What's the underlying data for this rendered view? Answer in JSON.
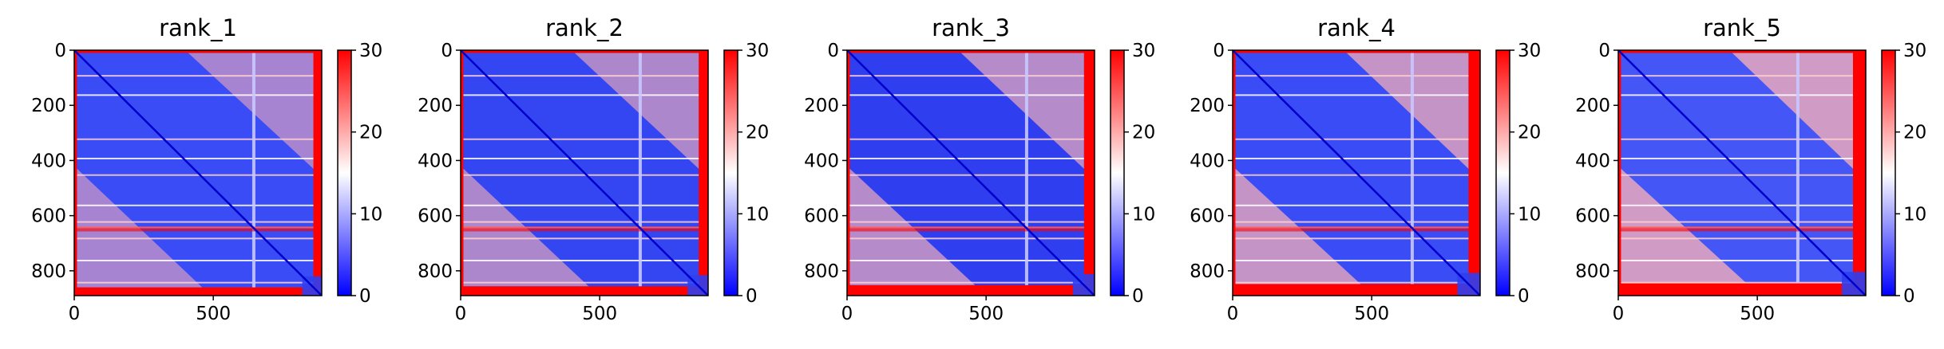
{
  "chart_data": [
    {
      "type": "heatmap",
      "title": "rank_1",
      "xticks": [
        0,
        500
      ],
      "yticks": [
        0,
        200,
        400,
        600,
        800
      ],
      "colorbar": {
        "ticks": [
          0,
          10,
          20,
          30
        ],
        "vmin": 0,
        "vmax": 30,
        "colormap": "bwr"
      },
      "matrix_size": 890,
      "bands": [
        90,
        160,
        320,
        390,
        450,
        560,
        620,
        640,
        680,
        760,
        840
      ]
    },
    {
      "type": "heatmap",
      "title": "rank_2",
      "xticks": [
        0,
        500
      ],
      "yticks": [
        0,
        200,
        400,
        600,
        800
      ],
      "colorbar": {
        "ticks": [
          0,
          10,
          20,
          30
        ],
        "vmin": 0,
        "vmax": 30,
        "colormap": "bwr"
      },
      "matrix_size": 890,
      "bands": [
        90,
        160,
        320,
        390,
        450,
        560,
        620,
        640,
        680,
        760,
        840
      ]
    },
    {
      "type": "heatmap",
      "title": "rank_3",
      "xticks": [
        0,
        500
      ],
      "yticks": [
        0,
        200,
        400,
        600,
        800
      ],
      "colorbar": {
        "ticks": [
          0,
          10,
          20,
          30
        ],
        "vmin": 0,
        "vmax": 30,
        "colormap": "bwr"
      },
      "matrix_size": 890,
      "bands": [
        90,
        160,
        320,
        390,
        450,
        560,
        620,
        640,
        680,
        760,
        840
      ]
    },
    {
      "type": "heatmap",
      "title": "rank_4",
      "xticks": [
        0,
        500
      ],
      "yticks": [
        0,
        200,
        400,
        600,
        800
      ],
      "colorbar": {
        "ticks": [
          0,
          10,
          20,
          30
        ],
        "vmin": 0,
        "vmax": 30,
        "colormap": "bwr"
      },
      "matrix_size": 890,
      "bands": [
        90,
        160,
        320,
        390,
        450,
        560,
        620,
        640,
        680,
        760,
        840
      ]
    },
    {
      "type": "heatmap",
      "title": "rank_5",
      "xticks": [
        0,
        500
      ],
      "yticks": [
        0,
        200,
        400,
        600,
        800
      ],
      "colorbar": {
        "ticks": [
          0,
          10,
          20,
          30
        ],
        "vmin": 0,
        "vmax": 30,
        "colormap": "bwr"
      },
      "matrix_size": 890,
      "bands": [
        90,
        160,
        320,
        390,
        450,
        560,
        620,
        640,
        680,
        760,
        840
      ]
    }
  ],
  "colors": {
    "low": "#0000ff",
    "mid": "#ffffff",
    "high": "#ff0000",
    "axis": "#000000"
  }
}
